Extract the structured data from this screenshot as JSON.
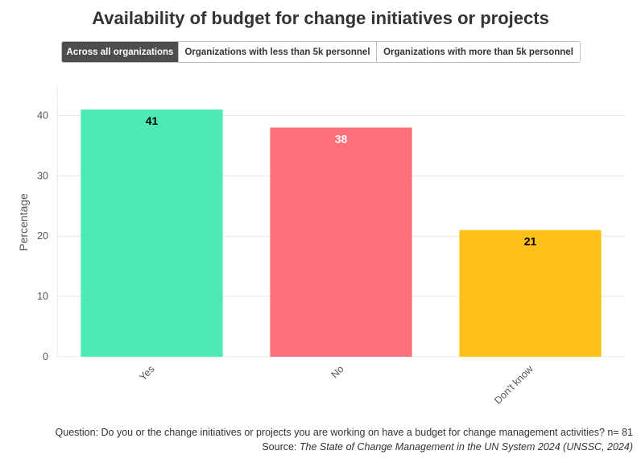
{
  "title": "Availability of budget for change initiatives or projects",
  "tabs": [
    {
      "label": "Across all organizations",
      "active": true
    },
    {
      "label": "Organizations with less than 5k personnel",
      "active": false
    },
    {
      "label": "Organizations with more than 5k personnel",
      "active": false
    }
  ],
  "chart_data": {
    "type": "bar",
    "categories": [
      "Yes",
      "No",
      "Don't know"
    ],
    "values": [
      41,
      38,
      21
    ],
    "colors": [
      "#4eeab6",
      "#fe717a",
      "#fec119"
    ],
    "label_colors": [
      "#000000",
      "#ffffff",
      "#000000"
    ],
    "ylabel": "Percentage",
    "xlabel": "",
    "ylim": [
      0,
      45
    ],
    "yticks": [
      0,
      10,
      20,
      30,
      40
    ],
    "grid": true
  },
  "footer": {
    "question": "Question: Do you or the change initiatives or projects you are working on have a budget for change management activities? n= 81",
    "source_prefix": "Source: ",
    "source_title": "The State of Change Management in the UN System 2024 (UNSSC, 2024)"
  }
}
